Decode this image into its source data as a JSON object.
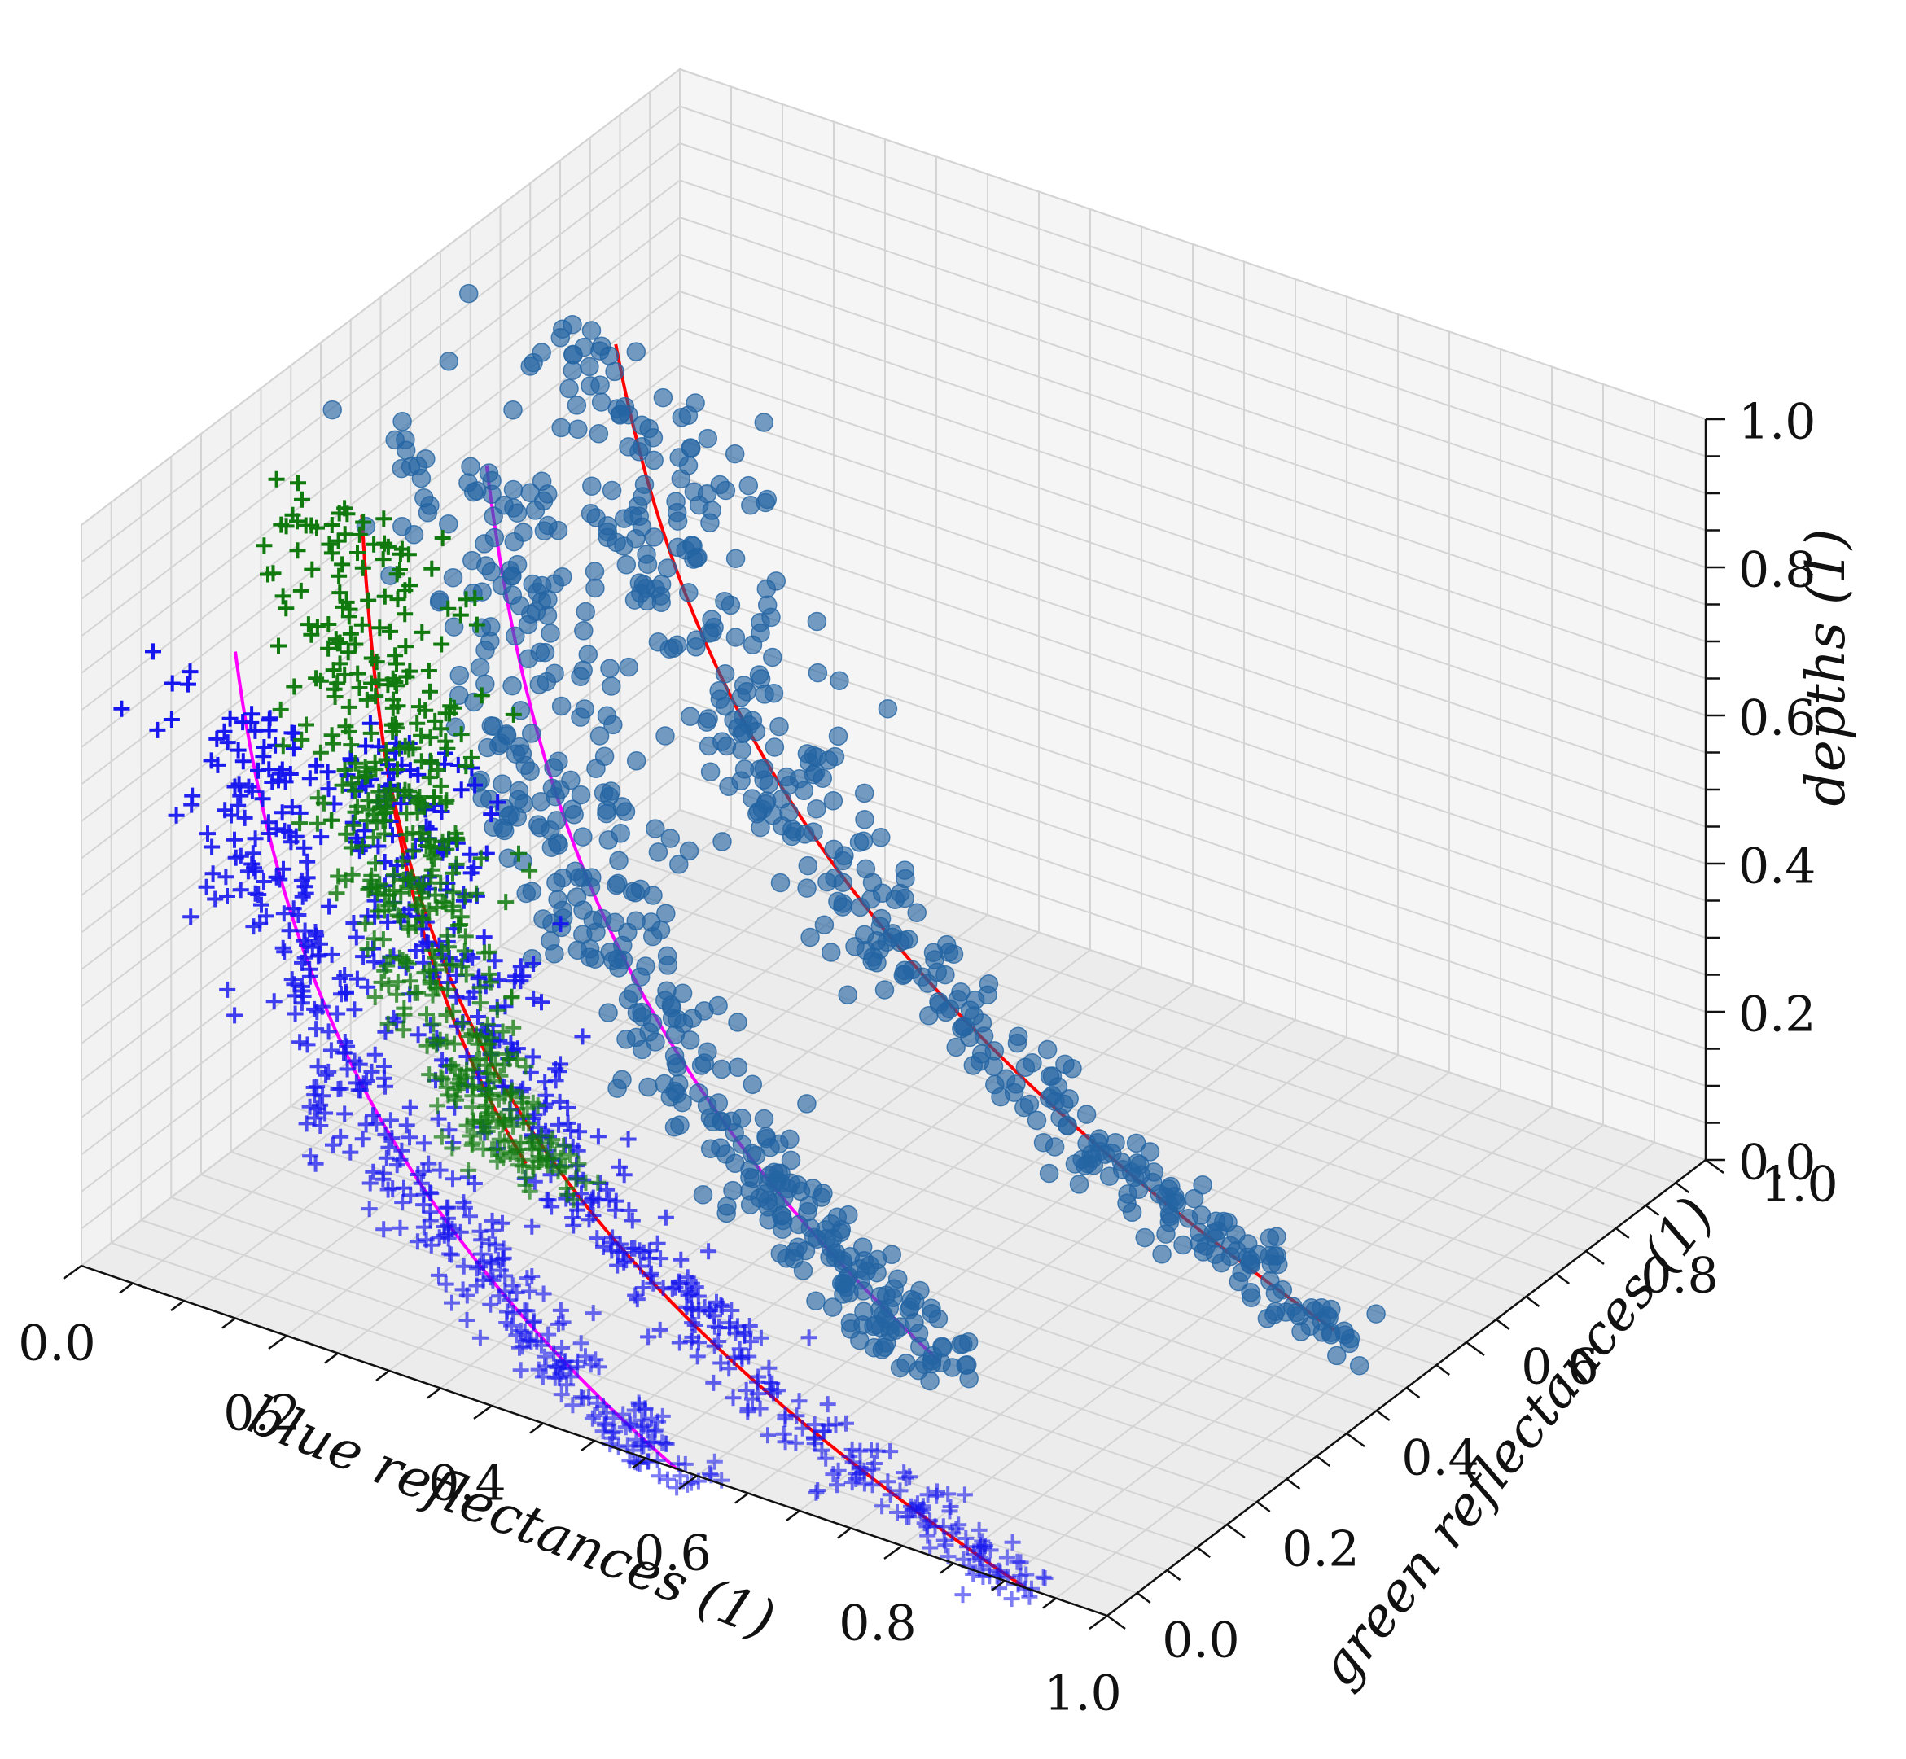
{
  "chart_data": {
    "type": "scatter",
    "subtype": "3d-scatter",
    "title": "",
    "xlabel": "blue reflectances (1)",
    "ylabel": "green reflectances (1)",
    "zlabel": "depths (1)",
    "xlim": [
      0,
      1
    ],
    "ylim": [
      0,
      1
    ],
    "zlim": [
      0,
      1
    ],
    "x_ticks": [
      "0.0",
      "0.2",
      "0.4",
      "0.6",
      "0.8",
      "1.0"
    ],
    "y_ticks": [
      "0.0",
      "0.2",
      "0.4",
      "0.6",
      "0.8",
      "1.0"
    ],
    "z_ticks": [
      "0.0",
      "0.2",
      "0.4",
      "0.6",
      "0.8",
      "1.0"
    ],
    "grid": true,
    "legend": "none",
    "colors": {
      "pane": "#f2f2f2",
      "grid": "#d4d4d4",
      "pane_edge": "#c8c8c8",
      "blue_plus": "#1515ee",
      "green_plus": "#117a0f",
      "dots": "#2364a3",
      "fit_magenta": "#ff00ff",
      "fit_red": "#ff0000"
    },
    "series": [
      {
        "marker": "plus",
        "color": "#1515ee",
        "curve": {
          "y": 0.0,
          "x0": 0.15,
          "x1": 0.58,
          "z0": 0.85
        },
        "spread": 0.04,
        "count": 420
      },
      {
        "marker": "plus",
        "color": "#1515ee",
        "curve": {
          "y": 0.0,
          "x0": 0.3,
          "x1": 0.92,
          "z0": 0.85
        },
        "spread": 0.04,
        "count": 460
      },
      {
        "marker": "plus",
        "color": "#117a0f",
        "curve": {
          "y": 0.16,
          "x0": 0.18,
          "x1": 0.34,
          "z0": 1.0,
          "z1": 0.2
        },
        "spread": 0.04,
        "count": 500
      },
      {
        "marker": "dot",
        "color": "#2364a3",
        "curve": {
          "y": 0.3,
          "x0": 0.22,
          "x1": 0.66,
          "z0": 1.0
        },
        "spread": 0.045,
        "count": 430
      },
      {
        "marker": "dot",
        "color": "#2364a3",
        "curve": {
          "y": 0.55,
          "x0": 0.2,
          "x1": 0.9,
          "z0": 1.0
        },
        "spread": 0.045,
        "count": 430
      }
    ],
    "fits": [
      {
        "color": "#ff00ff",
        "y": 0.0,
        "x0": 0.15,
        "x1": 0.58,
        "z0": 0.9,
        "z1": 0.0
      },
      {
        "color": "#ff0000",
        "y": 0.0,
        "x0": 0.3,
        "x1": 0.92,
        "z0": 0.8,
        "z1": 0.0
      },
      {
        "color": "#ff00ff",
        "y": 0.16,
        "x0": 0.18,
        "x1": 0.34,
        "z0": 1.0,
        "z1": 0.2
      },
      {
        "color": "#ff0000",
        "y": 0.16,
        "x0": 0.18,
        "x1": 0.34,
        "z0": 1.0,
        "z1": 0.2
      },
      {
        "color": "#ff00ff",
        "y": 0.3,
        "x0": 0.22,
        "x1": 0.66,
        "z0": 1.0,
        "z1": 0.0
      },
      {
        "color": "#ff0000",
        "y": 0.55,
        "x0": 0.2,
        "x1": 0.9,
        "z0": 1.0,
        "z1": 0.0
      }
    ]
  }
}
